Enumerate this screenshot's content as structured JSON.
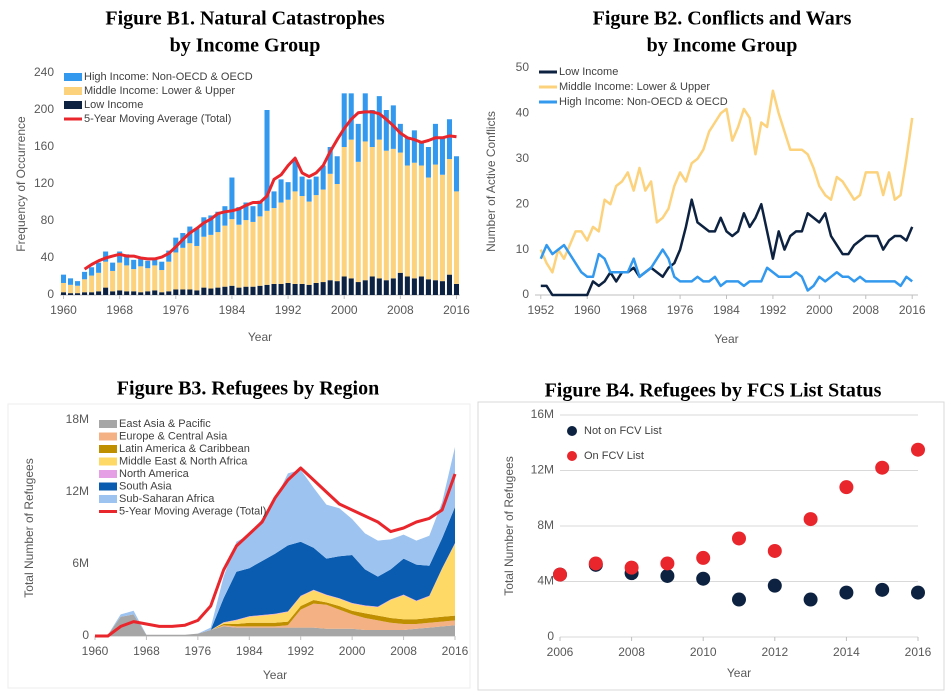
{
  "chart_data": [
    {
      "type": "bar",
      "title": [
        "Figure B1. Natural Catastrophes",
        "by Income Group"
      ],
      "xlabel": "Year",
      "ylabel": "Frequency of Occurrence",
      "stacked": true,
      "legend": "upper left",
      "x": [
        1960,
        1961,
        1962,
        1963,
        1964,
        1965,
        1966,
        1967,
        1968,
        1969,
        1970,
        1971,
        1972,
        1973,
        1974,
        1975,
        1976,
        1977,
        1978,
        1979,
        1980,
        1981,
        1982,
        1983,
        1984,
        1985,
        1986,
        1987,
        1988,
        1989,
        1990,
        1991,
        1992,
        1993,
        1994,
        1995,
        1996,
        1997,
        1998,
        1999,
        2000,
        2001,
        2002,
        2003,
        2004,
        2005,
        2006,
        2007,
        2008,
        2009,
        2010,
        2011,
        2012,
        2013,
        2014,
        2015,
        2016
      ],
      "xlim": [
        1959.5,
        2016.5
      ],
      "xticks": [
        1960,
        1968,
        1976,
        1984,
        1992,
        2000,
        2008,
        2016
      ],
      "ylim": [
        0,
        240
      ],
      "yticks": [
        0,
        40,
        80,
        120,
        160,
        200,
        240
      ],
      "series": [
        {
          "name": "High Income: Non-OECD & OECD",
          "color": "#3399ee",
          "values": [
            9,
            7,
            5,
            8,
            9,
            11,
            11,
            9,
            12,
            12,
            10,
            9,
            8,
            8,
            9,
            12,
            16,
            16,
            18,
            19,
            21,
            21,
            22,
            21,
            45,
            19,
            19,
            17,
            17,
            109,
            18,
            25,
            19,
            34,
            21,
            24,
            20,
            26,
            29,
            30,
            58,
            50,
            41,
            52,
            40,
            47,
            44,
            47,
            31,
            30,
            35,
            25,
            33,
            44,
            40,
            43,
            38
          ]
        },
        {
          "name": "Middle Income: Lower & Upper",
          "color": "#fcd27c",
          "values": [
            10,
            9,
            8,
            14,
            18,
            20,
            28,
            22,
            30,
            28,
            24,
            28,
            25,
            27,
            24,
            32,
            40,
            45,
            50,
            48,
            55,
            58,
            60,
            66,
            72,
            68,
            72,
            70,
            75,
            80,
            82,
            88,
            90,
            100,
            95,
            90,
            95,
            100,
            115,
            105,
            140,
            150,
            130,
            150,
            140,
            150,
            140,
            140,
            130,
            120,
            125,
            120,
            110,
            125,
            115,
            125,
            100
          ]
        },
        {
          "name": "Low Income",
          "color": "#0d2240",
          "values": [
            3,
            2,
            2,
            3,
            3,
            4,
            8,
            4,
            5,
            4,
            4,
            3,
            4,
            5,
            3,
            4,
            6,
            6,
            6,
            5,
            8,
            7,
            8,
            9,
            10,
            8,
            9,
            9,
            10,
            11,
            12,
            12,
            13,
            12,
            12,
            11,
            13,
            14,
            16,
            15,
            20,
            18,
            14,
            16,
            20,
            18,
            16,
            18,
            24,
            20,
            18,
            20,
            17,
            16,
            15,
            22,
            12
          ]
        },
        {
          "name": "5-Year Moving Average (Total)",
          "type": "line",
          "color": "#e8262c",
          "values": [
            null,
            null,
            null,
            28,
            33,
            37,
            40,
            42,
            44,
            42,
            42,
            40,
            39,
            39,
            41,
            45,
            52,
            60,
            67,
            72,
            78,
            82,
            88,
            90,
            91,
            93,
            97,
            100,
            100,
            107,
            125,
            130,
            140,
            148,
            132,
            128,
            132,
            140,
            155,
            168,
            180,
            190,
            197,
            198,
            198,
            196,
            190,
            183,
            175,
            170,
            168,
            165,
            167,
            170,
            170,
            172,
            171
          ]
        }
      ]
    },
    {
      "type": "line",
      "title": [
        "Figure B2. Conflicts and Wars",
        "by Income Group"
      ],
      "xlabel": "Year",
      "ylabel": "Number of Active Conflicts",
      "legend": "upper left",
      "x": [
        1952,
        1953,
        1954,
        1955,
        1956,
        1957,
        1958,
        1959,
        1960,
        1961,
        1962,
        1963,
        1964,
        1965,
        1966,
        1967,
        1968,
        1969,
        1970,
        1971,
        1972,
        1973,
        1974,
        1975,
        1976,
        1977,
        1978,
        1979,
        1980,
        1981,
        1982,
        1983,
        1984,
        1985,
        1986,
        1987,
        1988,
        1989,
        1990,
        1991,
        1992,
        1993,
        1994,
        1995,
        1996,
        1997,
        1998,
        1999,
        2000,
        2001,
        2002,
        2003,
        2004,
        2005,
        2006,
        2007,
        2008,
        2009,
        2010,
        2011,
        2012,
        2013,
        2014,
        2015,
        2016
      ],
      "xlim": [
        1951,
        2017
      ],
      "xticks": [
        1952,
        1960,
        1968,
        1976,
        1984,
        1992,
        2000,
        2008,
        2016
      ],
      "ylim": [
        0,
        50
      ],
      "yticks": [
        0,
        10,
        20,
        30,
        40,
        50
      ],
      "series": [
        {
          "name": "Low Income",
          "color": "#0d2240",
          "values": [
            2,
            2,
            0,
            0,
            0,
            0,
            0,
            0,
            0,
            3,
            2,
            3,
            5,
            3,
            5,
            5,
            6,
            4,
            5,
            6,
            5,
            4,
            6,
            7,
            10,
            15,
            21,
            16,
            15,
            14,
            14,
            17,
            14,
            13,
            14,
            18,
            15,
            17,
            20,
            14,
            8,
            14,
            10,
            13,
            14,
            14,
            18,
            17,
            16,
            18,
            13,
            11,
            9,
            9,
            11,
            12,
            13,
            13,
            13,
            10,
            12,
            13,
            13,
            12,
            15
          ]
        },
        {
          "name": "Middle Income: Lower & Upper",
          "color": "#fcd27c",
          "values": [
            10,
            7,
            5,
            10,
            8,
            11,
            14,
            14,
            12,
            15,
            14,
            21,
            20,
            24,
            25,
            27,
            23,
            28,
            23,
            25,
            16,
            17,
            19,
            24,
            27,
            25,
            29,
            30,
            32,
            36,
            38,
            40,
            41,
            34,
            37,
            41,
            39,
            31,
            38,
            37,
            45,
            40,
            36,
            32,
            32,
            32,
            31,
            28,
            24,
            22,
            21,
            26,
            25,
            23,
            21,
            22,
            27,
            27,
            27,
            22,
            27,
            21,
            22,
            30,
            39
          ]
        },
        {
          "name": "High Income: Non-OECD & OECD",
          "color": "#3399ee",
          "values": [
            8,
            11,
            9,
            10,
            11,
            9,
            7,
            5,
            4,
            4,
            9,
            8,
            5,
            5,
            5,
            5,
            8,
            4,
            5,
            6,
            8,
            10,
            8,
            4,
            3,
            3,
            3,
            4,
            3,
            3,
            4,
            2,
            3,
            3,
            3,
            2,
            3,
            3,
            3,
            6,
            5,
            4,
            4,
            4,
            5,
            4,
            1,
            2,
            4,
            3,
            4,
            5,
            4,
            4,
            3,
            4,
            3,
            3,
            3,
            3,
            3,
            3,
            2,
            4,
            3
          ]
        }
      ]
    },
    {
      "type": "area",
      "title": [
        "Figure B3. Refugees by Region"
      ],
      "xlabel": "Year",
      "ylabel": "Total Number of Refugees",
      "stacked": true,
      "legend": "upper left",
      "x": [
        1960,
        1962,
        1964,
        1966,
        1968,
        1970,
        1972,
        1974,
        1976,
        1978,
        1980,
        1982,
        1984,
        1986,
        1988,
        1990,
        1992,
        1994,
        1996,
        1998,
        2000,
        2002,
        2004,
        2006,
        2008,
        2010,
        2012,
        2014,
        2016
      ],
      "xlim": [
        1960,
        2016
      ],
      "xticks": [
        1960,
        1968,
        1976,
        1984,
        1992,
        2000,
        2008,
        2016
      ],
      "ylim": [
        0,
        18000000
      ],
      "yticks": [
        0,
        {
          "value": 6000000,
          "label": "6M"
        },
        {
          "value": 12000000,
          "label": "12M"
        },
        {
          "value": 18000000,
          "label": "18M"
        }
      ],
      "series": [
        {
          "name": "East Asia & Pacific",
          "color": "#a6a6a6",
          "values": [
            0,
            100000,
            1600000,
            1800000,
            100000,
            100000,
            100000,
            100000,
            200000,
            500000,
            800000,
            700000,
            700000,
            700000,
            700000,
            700000,
            700000,
            700000,
            600000,
            600000,
            600000,
            500000,
            500000,
            500000,
            500000,
            600000,
            700000,
            800000,
            900000
          ]
        },
        {
          "name": "Europe & Central Asia",
          "color": "#f4b183",
          "values": [
            0,
            0,
            0,
            0,
            0,
            0,
            0,
            0,
            0,
            0,
            100000,
            100000,
            100000,
            100000,
            100000,
            200000,
            1500000,
            2000000,
            2000000,
            1600000,
            1200000,
            1000000,
            800000,
            600000,
            500000,
            400000,
            400000,
            400000,
            400000
          ]
        },
        {
          "name": "Latin America & Caribbean",
          "color": "#bf8f00",
          "values": [
            0,
            0,
            0,
            0,
            0,
            0,
            0,
            0,
            0,
            0,
            100000,
            200000,
            300000,
            300000,
            300000,
            300000,
            300000,
            300000,
            200000,
            300000,
            300000,
            400000,
            400000,
            400000,
            400000,
            400000,
            400000,
            400000,
            400000
          ]
        },
        {
          "name": "Middle East & North Africa",
          "color": "#ffd966",
          "values": [
            0,
            0,
            0,
            0,
            0,
            0,
            0,
            0,
            0,
            0,
            100000,
            300000,
            500000,
            600000,
            700000,
            800000,
            800000,
            800000,
            600000,
            600000,
            600000,
            600000,
            700000,
            1500000,
            2000000,
            1500000,
            1800000,
            4000000,
            6000000
          ]
        },
        {
          "name": "North America",
          "color": "#e5a0e5",
          "values": [
            0,
            0,
            0,
            0,
            0,
            0,
            0,
            0,
            0,
            0,
            50000,
            50000,
            50000,
            50000,
            50000,
            50000,
            50000,
            50000,
            50000,
            50000,
            50000,
            50000,
            50000,
            50000,
            50000,
            50000,
            50000,
            50000,
            50000
          ]
        },
        {
          "name": "South Asia",
          "color": "#0a5cb0",
          "values": [
            0,
            0,
            0,
            0,
            0,
            0,
            0,
            0,
            0,
            0,
            2000000,
            4000000,
            4000000,
            4500000,
            5000000,
            5500000,
            4500000,
            3500000,
            3000000,
            3500000,
            4000000,
            3000000,
            2500000,
            2500000,
            3000000,
            3000000,
            2500000,
            2500000,
            3000000
          ]
        },
        {
          "name": "Sub-Saharan Africa",
          "color": "#9dc3f0",
          "values": [
            0,
            0,
            200000,
            300000,
            0,
            0,
            0,
            0,
            0,
            200000,
            1800000,
            2500000,
            2800000,
            3500000,
            4500000,
            6000000,
            6000000,
            5000000,
            4500000,
            4000000,
            3000000,
            3000000,
            3000000,
            2500000,
            2000000,
            2000000,
            2500000,
            3000000,
            5000000
          ]
        },
        {
          "name": "5-Year Moving Average (Total)",
          "type": "line",
          "color": "#e8262c",
          "values": [
            0,
            0,
            800000,
            1200000,
            1000000,
            800000,
            800000,
            900000,
            1300000,
            2500000,
            5500000,
            7500000,
            8500000,
            9500000,
            11500000,
            13000000,
            14000000,
            13000000,
            12000000,
            11000000,
            10500000,
            10000000,
            9500000,
            8700000,
            9000000,
            9500000,
            9800000,
            10500000,
            13500000
          ]
        }
      ]
    },
    {
      "type": "scatter",
      "title": [
        "Figure B4. Refugees by FCS List Status"
      ],
      "xlabel": "Year",
      "ylabel": "Total Number of Refugees",
      "legend": "upper left",
      "grid": true,
      "x": [
        2006,
        2007,
        2008,
        2009,
        2010,
        2011,
        2012,
        2013,
        2014,
        2015,
        2016
      ],
      "xlim": [
        2006,
        2016
      ],
      "xticks": [
        2006,
        2008,
        2010,
        2012,
        2014,
        2016
      ],
      "ylim": [
        0,
        16000000
      ],
      "yticks": [
        0,
        {
          "value": 4000000,
          "label": "4M"
        },
        {
          "value": 8000000,
          "label": "8M"
        },
        {
          "value": 12000000,
          "label": "12M"
        },
        {
          "value": 16000000,
          "label": "16M"
        }
      ],
      "series": [
        {
          "name": "Not on FCV List",
          "color": "#0d2240",
          "values": [
            4500000,
            5200000,
            4600000,
            4400000,
            4200000,
            2700000,
            3700000,
            2700000,
            3200000,
            3400000,
            3200000
          ]
        },
        {
          "name": "On FCV List",
          "color": "#e8262c",
          "values": [
            4500000,
            5300000,
            5000000,
            5300000,
            5700000,
            7100000,
            6200000,
            8500000,
            10800000,
            12200000,
            13500000
          ]
        }
      ]
    }
  ]
}
